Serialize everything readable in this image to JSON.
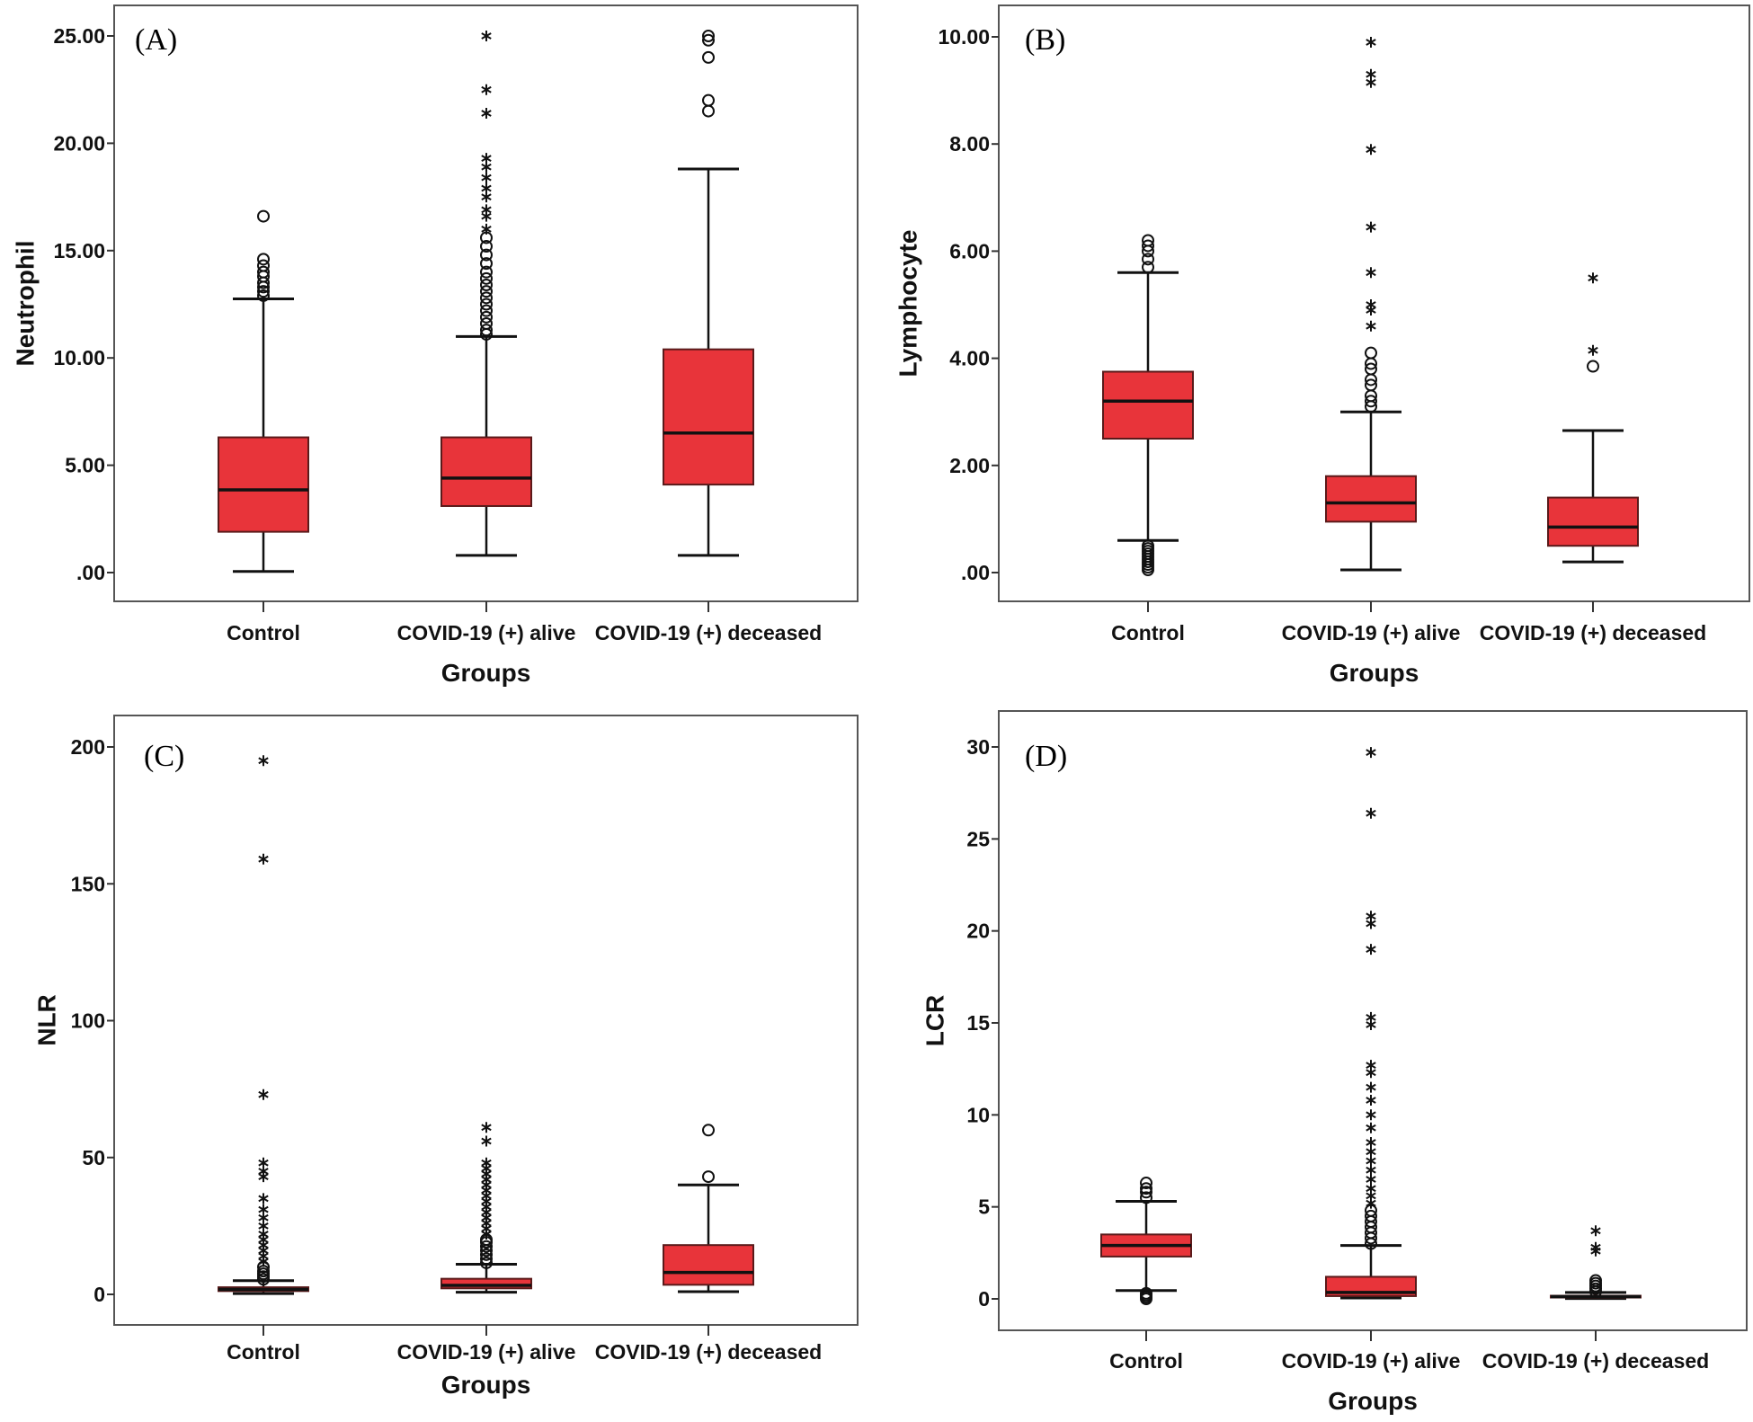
{
  "colors": {
    "box_fill": "#e8343a",
    "box_stroke": "#5a1a1a",
    "line": "#111111"
  },
  "chart_data": [
    {
      "type": "box",
      "panel_label": "(A)",
      "xlabel": "Groups",
      "ylabel": "Neutrophil",
      "ylim": [
        0,
        25
      ],
      "grid": false,
      "yticks": [
        0,
        5,
        10,
        15,
        20,
        25
      ],
      "ytick_labels": [
        ".00",
        "5.00",
        "10.00",
        "15.00",
        "20.00",
        "25.00"
      ],
      "categories": [
        "Control",
        "COVID-19 (+) alive",
        "COVID-19 (+) deceased"
      ],
      "boxes": [
        {
          "min": 0.05,
          "q1": 1.9,
          "median": 3.85,
          "q3": 6.3,
          "max": 12.75,
          "outliers_circle": [
            12.9,
            13.1,
            13.3,
            13.5,
            13.8,
            14.0,
            14.3,
            14.6,
            16.6
          ],
          "outliers_star": []
        },
        {
          "min": 0.8,
          "q1": 3.1,
          "median": 4.4,
          "q3": 6.3,
          "max": 11.0,
          "outliers_circle": [
            11.1,
            11.3,
            11.6,
            11.9,
            12.2,
            12.5,
            12.8,
            13.1,
            13.4,
            13.7,
            14.0,
            14.4,
            14.8,
            15.2,
            15.6
          ],
          "outliers_star": [
            16.0,
            16.6,
            16.9,
            17.5,
            17.9,
            18.4,
            18.9,
            19.3,
            21.4,
            22.5,
            25.0
          ]
        },
        {
          "min": 0.8,
          "q1": 4.1,
          "median": 6.5,
          "q3": 10.4,
          "max": 18.8,
          "outliers_circle": [
            21.5,
            22.0,
            24.0,
            24.8,
            25.0
          ],
          "outliers_star": []
        }
      ]
    },
    {
      "type": "box",
      "panel_label": "(B)",
      "xlabel": "Groups",
      "ylabel": "Lymphocyte",
      "ylim": [
        0,
        10
      ],
      "grid": false,
      "yticks": [
        0,
        2,
        4,
        6,
        8,
        10
      ],
      "ytick_labels": [
        ".00",
        "2.00",
        "4.00",
        "6.00",
        "8.00",
        "10.00"
      ],
      "categories": [
        "Control",
        "COVID-19 (+) alive",
        "COVID-19 (+) deceased"
      ],
      "boxes": [
        {
          "min": 0.6,
          "q1": 2.5,
          "median": 3.2,
          "q3": 3.75,
          "max": 5.6,
          "outliers_circle": [
            0.05,
            0.1,
            0.15,
            0.2,
            0.25,
            0.3,
            0.35,
            0.4,
            0.45,
            0.5,
            5.7,
            5.85,
            6.0,
            6.1,
            6.2
          ],
          "outliers_star": []
        },
        {
          "min": 0.05,
          "q1": 0.95,
          "median": 1.3,
          "q3": 1.8,
          "max": 3.0,
          "outliers_circle": [
            3.1,
            3.2,
            3.3,
            3.5,
            3.6,
            3.8,
            3.9,
            4.1
          ],
          "outliers_star": [
            4.6,
            4.9,
            5.0,
            5.6,
            6.45,
            7.9,
            9.15,
            9.3,
            9.9
          ]
        },
        {
          "min": 0.2,
          "q1": 0.5,
          "median": 0.85,
          "q3": 1.4,
          "max": 2.65,
          "outliers_circle": [
            3.85
          ],
          "outliers_star": [
            4.15,
            5.5
          ]
        }
      ]
    },
    {
      "type": "box",
      "panel_label": "(C)",
      "xlabel": "Groups",
      "ylabel": "NLR",
      "ylim": [
        0,
        200
      ],
      "grid": false,
      "yticks": [
        0,
        50,
        100,
        150,
        200
      ],
      "ytick_labels": [
        "0",
        "50",
        "100",
        "150",
        "200"
      ],
      "categories": [
        "Control",
        "COVID-19 (+) alive",
        "COVID-19 (+)  deceased"
      ],
      "boxes": [
        {
          "min": 0.3,
          "q1": 1.2,
          "median": 1.8,
          "q3": 2.6,
          "max": 5.0,
          "outliers_circle": [
            5.5,
            6.5,
            7.5,
            8.5,
            10.0
          ],
          "outliers_star": [
            12,
            14,
            16,
            18,
            20,
            22,
            25,
            28,
            31,
            35,
            43,
            45,
            48,
            73,
            159,
            195
          ]
        },
        {
          "min": 0.8,
          "q1": 2.2,
          "median": 3.3,
          "q3": 5.7,
          "max": 11.0,
          "outliers_circle": [
            11.5,
            13,
            14.5,
            16,
            17.5,
            19,
            20
          ],
          "outliers_star": [
            22,
            24,
            26,
            28,
            30,
            32,
            34,
            36,
            38,
            40,
            42,
            44,
            46,
            48,
            56,
            61
          ]
        },
        {
          "min": 1.0,
          "q1": 3.5,
          "median": 8.0,
          "q3": 18.0,
          "max": 40.0,
          "outliers_circle": [
            43,
            60
          ],
          "outliers_star": []
        }
      ]
    },
    {
      "type": "box",
      "panel_label": "(D)",
      "xlabel": "Groups",
      "ylabel": "LCR",
      "ylim": [
        0,
        30
      ],
      "grid": false,
      "yticks": [
        0,
        5,
        10,
        15,
        20,
        25,
        30
      ],
      "ytick_labels": [
        "0",
        "5",
        "10",
        "15",
        "20",
        "25",
        "30"
      ],
      "categories": [
        "Control",
        "COVID-19 (+) alive",
        "COVID-19 (+)  deceased"
      ],
      "boxes": [
        {
          "min": 0.45,
          "q1": 2.3,
          "median": 2.9,
          "q3": 3.5,
          "max": 5.3,
          "outliers_circle": [
            0.0,
            0.1,
            0.2,
            0.3,
            5.5,
            5.8,
            6.0,
            6.3
          ],
          "outliers_star": []
        },
        {
          "min": 0.05,
          "q1": 0.15,
          "median": 0.35,
          "q3": 1.2,
          "max": 2.9,
          "outliers_circle": [
            3.0,
            3.3,
            3.6,
            3.9,
            4.2,
            4.5,
            4.8
          ],
          "outliers_star": [
            5.2,
            5.6,
            6.0,
            6.5,
            7.0,
            7.5,
            8.0,
            8.5,
            9.3,
            10.0,
            10.8,
            11.5,
            12.3,
            12.7,
            14.9,
            15.3,
            19.0,
            20.4,
            20.8,
            26.4,
            29.7
          ]
        },
        {
          "min": 0.02,
          "q1": 0.08,
          "median": 0.12,
          "q3": 0.17,
          "max": 0.35,
          "outliers_circle": [
            0.4,
            0.55,
            0.7,
            0.85,
            1.0
          ],
          "outliers_star": [
            2.6,
            2.8,
            3.7
          ]
        }
      ]
    }
  ]
}
